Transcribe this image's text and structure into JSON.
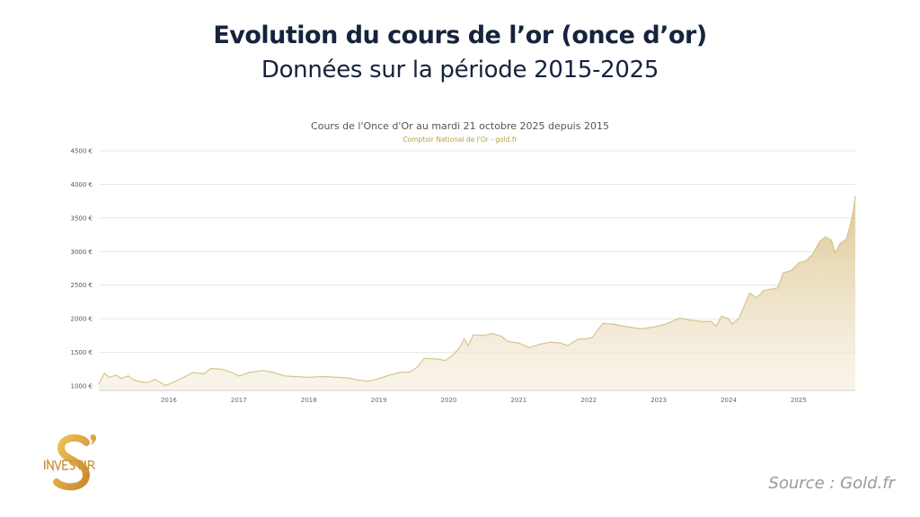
{
  "header": {
    "title": "Evolution du cours de l’or (once d’or)",
    "subtitle": "Données sur la période 2015-2025"
  },
  "source": "Source : Gold.fr",
  "logo": {
    "text": "S' INVESTIR",
    "color": "#d9a441"
  },
  "chart_data": {
    "type": "area",
    "title": "Cours de l'Once d'Or au mardi 21 octobre 2025 depuis 2015",
    "subtitle": "Comptoir National de l'Or - gold.fr",
    "xlabel": "",
    "ylabel": "",
    "xlim": [
      2015.0,
      2025.81
    ],
    "ylim": [
      1000,
      4500
    ],
    "x_ticks": [
      "2016",
      "2017",
      "2018",
      "2019",
      "2020",
      "2021",
      "2022",
      "2023",
      "2024",
      "2025"
    ],
    "y_ticks": [
      "1000 €",
      "1500 €",
      "2000 €",
      "2500 €",
      "3000 €",
      "3500 €",
      "4000 €",
      "4500 €"
    ],
    "grid": true,
    "line_color": "#d8c48e",
    "fill_color": "#e9dcb8",
    "x": [
      2015.0,
      2015.08,
      2015.15,
      2015.25,
      2015.32,
      2015.42,
      2015.5,
      2015.6,
      2015.7,
      2015.8,
      2015.9,
      2015.96,
      2016.1,
      2016.25,
      2016.35,
      2016.5,
      2016.6,
      2016.75,
      2016.9,
      2017.0,
      2017.15,
      2017.35,
      2017.5,
      2017.65,
      2017.8,
      2018.0,
      2018.2,
      2018.4,
      2018.55,
      2018.7,
      2018.85,
      2019.0,
      2019.15,
      2019.3,
      2019.45,
      2019.55,
      2019.65,
      2019.85,
      2019.95,
      2020.05,
      2020.15,
      2020.22,
      2020.28,
      2020.35,
      2020.5,
      2020.62,
      2020.75,
      2020.85,
      2021.0,
      2021.15,
      2021.3,
      2021.45,
      2021.6,
      2021.7,
      2021.85,
      2021.95,
      2022.05,
      2022.2,
      2022.35,
      2022.5,
      2022.62,
      2022.75,
      2022.95,
      2023.1,
      2023.3,
      2023.45,
      2023.6,
      2023.75,
      2023.82,
      2023.9,
      2024.0,
      2024.05,
      2024.15,
      2024.3,
      2024.4,
      2024.5,
      2024.7,
      2024.78,
      2024.9,
      2025.0,
      2025.1,
      2025.2,
      2025.3,
      2025.38,
      2025.47,
      2025.52,
      2025.6,
      2025.68,
      2025.74,
      2025.78,
      2025.81
    ],
    "values": [
      1030,
      1190,
      1130,
      1160,
      1110,
      1150,
      1090,
      1060,
      1050,
      1100,
      1040,
      1010,
      1070,
      1150,
      1200,
      1180,
      1260,
      1250,
      1200,
      1150,
      1200,
      1230,
      1200,
      1150,
      1140,
      1130,
      1140,
      1130,
      1120,
      1090,
      1070,
      1110,
      1160,
      1200,
      1210,
      1280,
      1410,
      1400,
      1380,
      1450,
      1560,
      1700,
      1600,
      1760,
      1750,
      1780,
      1740,
      1660,
      1640,
      1570,
      1620,
      1650,
      1640,
      1600,
      1700,
      1700,
      1720,
      1930,
      1920,
      1890,
      1870,
      1850,
      1880,
      1920,
      2010,
      1980,
      1960,
      1960,
      1890,
      2040,
      2000,
      1920,
      2010,
      2380,
      2310,
      2420,
      2460,
      2680,
      2720,
      2830,
      2860,
      2960,
      3150,
      3220,
      3170,
      2980,
      3130,
      3180,
      3400,
      3600,
      3820
    ]
  }
}
